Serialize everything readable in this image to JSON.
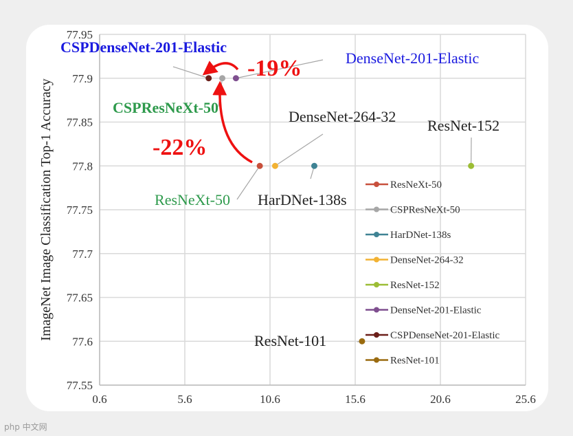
{
  "chart_data": {
    "type": "scatter",
    "ylabel": "ImageNet Image Classification Top-1 Accuracy",
    "xlabel": "",
    "xlim": [
      0.6,
      25.6
    ],
    "ylim": [
      77.55,
      77.95
    ],
    "xticks": [
      "0.6",
      "5.6",
      "10.6",
      "15.6",
      "20.6",
      "25.6"
    ],
    "yticks": [
      "77.55",
      "77.6",
      "77.65",
      "77.7",
      "77.75",
      "77.8",
      "77.85",
      "77.9",
      "77.95"
    ],
    "grid": true,
    "legend_position": "right",
    "series": [
      {
        "name": "ResNeXt-50",
        "x": 10.0,
        "y": 77.8,
        "color": "#c8503c",
        "label": "ResNeXt-50",
        "label_color": "#2e9a4c"
      },
      {
        "name": "CSPResNeXt-50",
        "x": 7.8,
        "y": 77.9,
        "color": "#a6a6a6",
        "label": "CSPResNeXt-50",
        "label_color": "#2e9a4c"
      },
      {
        "name": "HarDNet-138s",
        "x": 13.2,
        "y": 77.8,
        "color": "#3f8394",
        "label": "HarDNet-138s",
        "label_color": "#222222"
      },
      {
        "name": "DenseNet-264-32",
        "x": 10.9,
        "y": 77.8,
        "color": "#f2b233",
        "label": "DenseNet-264-32",
        "label_color": "#222222"
      },
      {
        "name": "ResNet-152",
        "x": 22.4,
        "y": 77.8,
        "color": "#9cbd35",
        "label": "ResNet-152",
        "label_color": "#222222"
      },
      {
        "name": "DenseNet-201-Elastic",
        "x": 8.6,
        "y": 77.9,
        "color": "#7f4f8f",
        "label": "DenseNet-201-Elastic",
        "label_color": "#1a1adf"
      },
      {
        "name": "CSPDenseNet-201-Elastic",
        "x": 7.0,
        "y": 77.9,
        "color": "#6b1f1a",
        "label": "CSPDenseNet-201-Elastic",
        "label_color": "#1a1adf"
      },
      {
        "name": "ResNet-101",
        "x": 16.0,
        "y": 77.6,
        "color": "#9a6b10",
        "label": "ResNet-101",
        "label_color": "#222222"
      }
    ],
    "annotations": [
      {
        "text": "-19%",
        "color": "#ee1111"
      },
      {
        "text": "-22%",
        "color": "#ee1111"
      }
    ]
  },
  "watermark": "php 中文网"
}
